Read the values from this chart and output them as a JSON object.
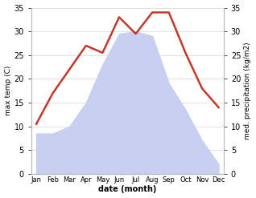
{
  "months": [
    "Jan",
    "Feb",
    "Mar",
    "Apr",
    "May",
    "Jun",
    "Jul",
    "Aug",
    "Sep",
    "Oct",
    "Nov",
    "Dec"
  ],
  "max_temp": [
    10.5,
    17.0,
    22.0,
    27.0,
    25.5,
    33.0,
    29.5,
    34.0,
    34.0,
    25.5,
    18.0,
    14.0
  ],
  "precipitation": [
    8.5,
    8.5,
    10.0,
    15.0,
    23.0,
    29.5,
    30.0,
    29.0,
    19.0,
    13.5,
    7.0,
    2.0
  ],
  "temp_color": "#c0392b",
  "precip_fill_color": "#c8d0f2",
  "ylim": [
    0,
    35
  ],
  "yticks": [
    0,
    5,
    10,
    15,
    20,
    25,
    30,
    35
  ],
  "ylabel_left": "max temp (C)",
  "ylabel_right": "med. precipitation (kg/m2)",
  "xlabel": "date (month)",
  "temp_linewidth": 1.8,
  "background_color": "#ffffff",
  "spine_color": "#bbbbbb",
  "grid_color": "#cccccc"
}
